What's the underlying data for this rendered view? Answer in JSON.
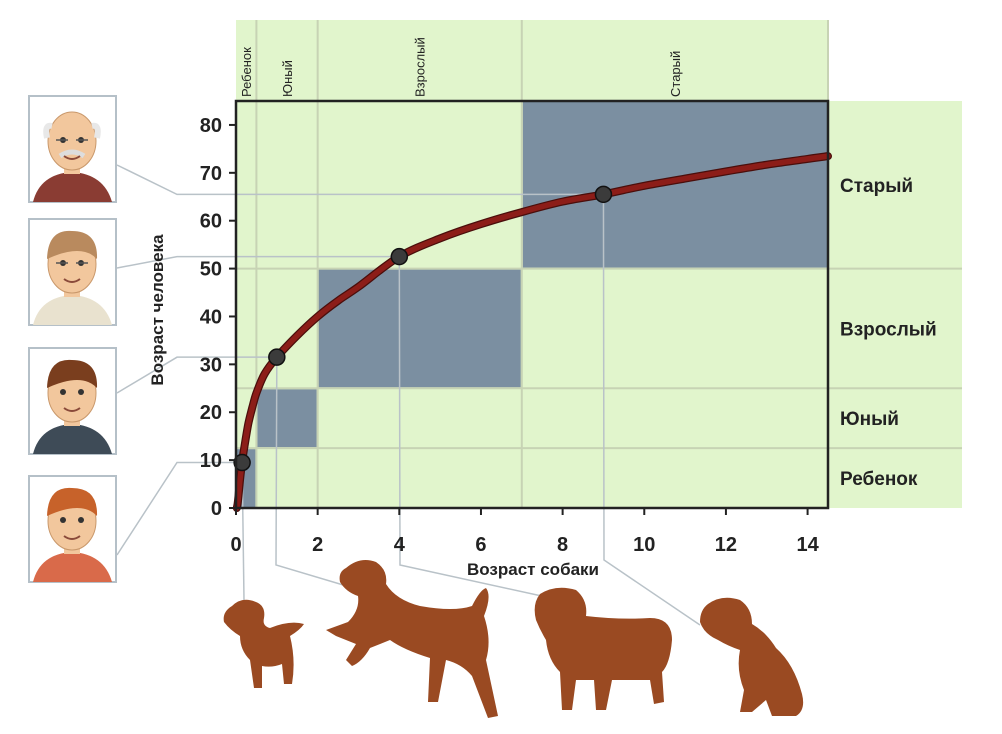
{
  "chart_data": {
    "type": "line",
    "xlabel": "Возраст собаки",
    "ylabel": "Возраст человека",
    "xlim": [
      0,
      14.5
    ],
    "ylim": [
      0,
      85
    ],
    "x_ticks": [
      0,
      2,
      4,
      6,
      8,
      10,
      12,
      14
    ],
    "y_ticks": [
      0,
      10,
      20,
      30,
      40,
      50,
      60,
      70,
      80
    ],
    "curve": {
      "x": [
        0.02,
        0.05,
        0.1,
        0.15,
        0.2,
        0.3,
        0.4,
        0.5,
        0.7,
        1,
        1.5,
        2,
        2.5,
        3,
        4,
        5,
        6,
        7,
        8,
        9,
        10,
        11,
        12,
        13,
        14,
        14.5
      ],
      "y": [
        0,
        1.5,
        6,
        9.5,
        12.5,
        17.5,
        21,
        24,
        28,
        31.5,
        36,
        40,
        43.3,
        46.2,
        52.5,
        56.3,
        59.3,
        61.8,
        64,
        65.5,
        67.3,
        68.8,
        70.3,
        71.7,
        72.9,
        73.5
      ]
    },
    "points": [
      {
        "x": 0.15,
        "y": 9.5
      },
      {
        "x": 1,
        "y": 31.5
      },
      {
        "x": 4,
        "y": 52.5
      },
      {
        "x": 9,
        "y": 65.5
      }
    ],
    "dog_stages": [
      {
        "label": "Ребенок",
        "x_from": 0,
        "x_to": 0.5
      },
      {
        "label": "Юный",
        "x_from": 0.5,
        "x_to": 2
      },
      {
        "label": "Взрослый",
        "x_from": 2,
        "x_to": 7
      },
      {
        "label": "Старый",
        "x_from": 7,
        "x_to": 14.5
      }
    ],
    "human_stages": [
      {
        "label": "Ребенок",
        "y_from": 0,
        "y_to": 12.5
      },
      {
        "label": "Юный",
        "y_from": 12.5,
        "y_to": 25
      },
      {
        "label": "Взрослый",
        "y_from": 25,
        "y_to": 50
      },
      {
        "label": "Старый",
        "y_from": 50,
        "y_to": 85
      }
    ],
    "grid": false,
    "colors": {
      "background_band": "#e1f5cc",
      "stage_box": "#7b8fa1",
      "curve": "#8c1d18",
      "curve_outline": "#4a0e0b",
      "point": "#3b3b3b",
      "axis": "#222222",
      "divider": "#c7d3b4",
      "connector": "#b9c2c8",
      "dog": "#9a4a22",
      "skin": "#f2c79d"
    }
  }
}
